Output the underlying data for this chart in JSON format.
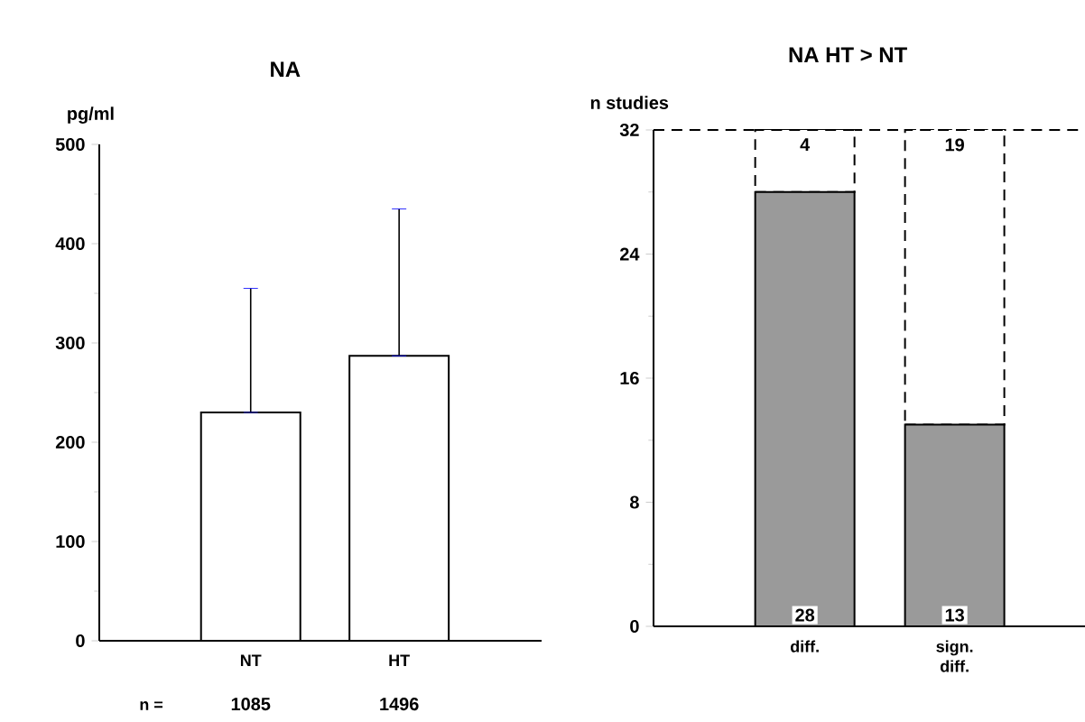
{
  "chart_data": [
    {
      "type": "bar",
      "title": "NA",
      "ylabel": "pg/ml",
      "categories": [
        "NT",
        "HT"
      ],
      "values": [
        230,
        287
      ],
      "errors": [
        [
          230,
          355
        ],
        [
          287,
          435
        ]
      ],
      "color": "#ffffff",
      "ylim": [
        0,
        500
      ],
      "yticks": [
        0,
        100,
        200,
        300,
        400,
        500
      ],
      "annotations": [
        "n =",
        "1085",
        "1496"
      ]
    },
    {
      "type": "bar",
      "title": "NA HT > NT",
      "ylabel": "n studies",
      "categories": [
        "diff.",
        "sign. diff."
      ],
      "stacked": true,
      "series": [
        {
          "color": "#9a9a9a",
          "values": [
            28,
            13
          ]
        },
        {
          "color": "#ffffff",
          "line_style": "dashed",
          "values": [
            4,
            19
          ]
        }
      ],
      "data_labels": true,
      "ylim": [
        0,
        32
      ],
      "yticks": [
        0,
        8,
        16,
        24,
        32
      ],
      "ref_lines": [
        {
          "axis": "y",
          "value": 32,
          "line_style": "dashed"
        }
      ]
    }
  ]
}
